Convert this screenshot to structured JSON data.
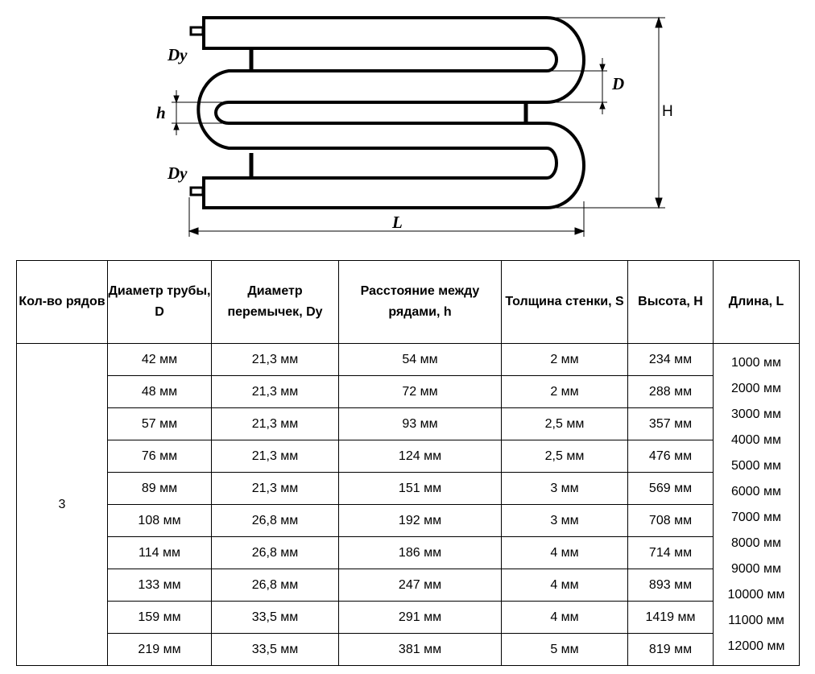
{
  "diagram": {
    "labels": {
      "dy_top": "Dy",
      "dy_bottom": "Dy",
      "h": "h",
      "d": "D",
      "height": "H",
      "length": "L"
    }
  },
  "table": {
    "headers": [
      "Кол-во рядов",
      "Диаметр трубы, D",
      "Диаметр перемычек, Dy",
      "Расстояние между рядами, h",
      "Толщина стенки, S",
      "Высота, H",
      "Длина, L"
    ],
    "rows_count": "3",
    "rows": [
      [
        "42 мм",
        "21,3 мм",
        "54 мм",
        "2 мм",
        "234 мм"
      ],
      [
        "48 мм",
        "21,3 мм",
        "72 мм",
        "2 мм",
        "288 мм"
      ],
      [
        "57 мм",
        "21,3 мм",
        "93 мм",
        "2,5 мм",
        "357 мм"
      ],
      [
        "76 мм",
        "21,3 мм",
        "124 мм",
        "2,5 мм",
        "476 мм"
      ],
      [
        "89 мм",
        "21,3 мм",
        "151 мм",
        "3 мм",
        "569 мм"
      ],
      [
        "108 мм",
        "26,8 мм",
        "192 мм",
        "3 мм",
        "708 мм"
      ],
      [
        "114 мм",
        "26,8 мм",
        "186 мм",
        "4 мм",
        "714 мм"
      ],
      [
        "133 мм",
        "26,8 мм",
        "247 мм",
        "4 мм",
        "893 мм"
      ],
      [
        "159 мм",
        "33,5 мм",
        "291 мм",
        "4 мм",
        "1419 мм"
      ],
      [
        "219 мм",
        "33,5 мм",
        "381 мм",
        "5 мм",
        "819 мм"
      ]
    ],
    "lengths": [
      "1000 мм",
      "2000 мм",
      "3000 мм",
      "4000 мм",
      "5000 мм",
      "6000 мм",
      "7000 мм",
      "8000 мм",
      "9000 мм",
      "10000 мм",
      "11000 мм",
      "12000 мм"
    ]
  }
}
